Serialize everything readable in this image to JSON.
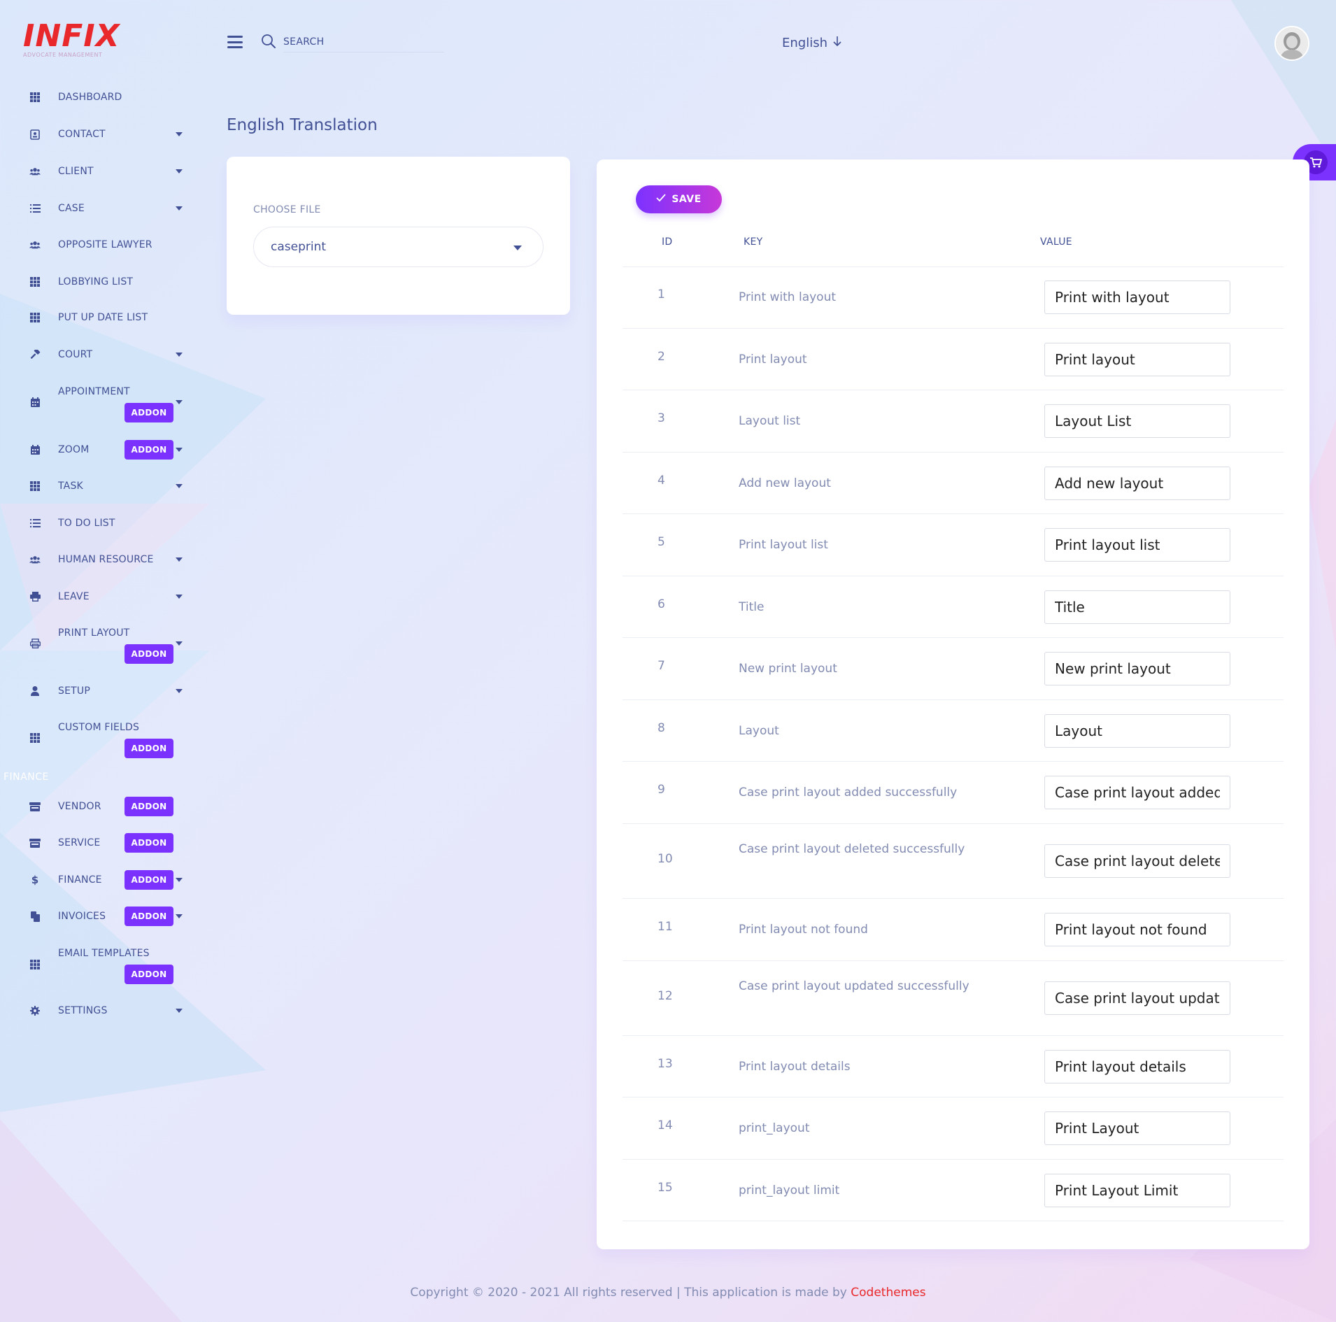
{
  "app": {
    "logo_text": "INFIX",
    "logo_subtitle": "ADVOCATE MANAGEMENT"
  },
  "header": {
    "search_placeholder": "SEARCH",
    "language": "English"
  },
  "sidebar": {
    "items": [
      {
        "label": "DASHBOARD",
        "icon": "grid-icon"
      },
      {
        "label": "CONTACT",
        "icon": "contact-icon"
      },
      {
        "label": "CLIENT",
        "icon": "users-icon"
      },
      {
        "label": "CASE",
        "icon": "list-icon"
      },
      {
        "label": "OPPOSITE LAWYER",
        "icon": "users-icon"
      },
      {
        "label": "LOBBYING LIST",
        "icon": "grid-icon"
      },
      {
        "label": "PUT UP DATE LIST",
        "icon": "grid-icon"
      },
      {
        "label": "COURT",
        "icon": "gavel-icon"
      },
      {
        "label": "APPOINTMENT",
        "icon": "calendar-icon",
        "badge": "ADDON"
      },
      {
        "label": "ZOOM",
        "icon": "calendar-icon",
        "badge": "ADDON"
      },
      {
        "label": "TASK",
        "icon": "grid-icon"
      },
      {
        "label": "TO DO LIST",
        "icon": "list-icon"
      },
      {
        "label": "HUMAN RESOURCE",
        "icon": "users-icon"
      },
      {
        "label": "LEAVE",
        "icon": "printer-icon"
      },
      {
        "label": "PRINT LAYOUT",
        "icon": "printer-icon",
        "badge": "ADDON"
      },
      {
        "label": "SETUP",
        "icon": "user-icon"
      },
      {
        "label": "CUSTOM FIELDS",
        "icon": "grid-icon",
        "badge": "ADDON"
      },
      {
        "label": "VENDOR",
        "icon": "store-icon",
        "badge": "ADDON"
      },
      {
        "label": "SERVICE",
        "icon": "store-icon",
        "badge": "ADDON"
      },
      {
        "label": "FINANCE",
        "icon": "dollar-icon",
        "badge": "ADDON"
      },
      {
        "label": "INVOICES",
        "icon": "copy-icon",
        "badge": "ADDON"
      },
      {
        "label": "EMAIL TEMPLATES",
        "icon": "grid-icon",
        "badge": "ADDON"
      },
      {
        "label": "SETTINGS",
        "icon": "gear-icon"
      }
    ],
    "finance_section": "FINANCE"
  },
  "main": {
    "title": "English Translation",
    "choose_file_label": "CHOOSE FILE",
    "selected_file": "caseprint",
    "save_label": "SAVE",
    "columns": [
      "ID",
      "KEY",
      "VALUE"
    ],
    "rows": [
      {
        "id": "1",
        "key": "Print with layout",
        "value": "Print with layout"
      },
      {
        "id": "2",
        "key": "Print layout",
        "value": "Print layout"
      },
      {
        "id": "3",
        "key": "Layout list",
        "value": "Layout List"
      },
      {
        "id": "4",
        "key": "Add new layout",
        "value": "Add new layout"
      },
      {
        "id": "5",
        "key": "Print layout list",
        "value": "Print layout list"
      },
      {
        "id": "6",
        "key": "Title",
        "value": "Title"
      },
      {
        "id": "7",
        "key": "New print layout",
        "value": "New print layout"
      },
      {
        "id": "8",
        "key": "Layout",
        "value": "Layout"
      },
      {
        "id": "9",
        "key": "Case print layout added successfully",
        "value": "Case print layout added successfully"
      },
      {
        "id": "10",
        "key": "Case print layout deleted successfully",
        "value": "Case print layout deleted successfully"
      },
      {
        "id": "11",
        "key": "Print layout not found",
        "value": "Print layout not found"
      },
      {
        "id": "12",
        "key": "Case print layout updated successfully",
        "value": "Case print layout updated successfully"
      },
      {
        "id": "13",
        "key": "Print layout details",
        "value": "Print layout details"
      },
      {
        "id": "14",
        "key": "print_layout",
        "value": "Print Layout"
      },
      {
        "id": "15",
        "key": "print_layout limit",
        "value": "Print Layout Limit"
      }
    ]
  },
  "footer": {
    "text": "Copyright © 2020 - 2021 All rights reserved | This application is made by ",
    "brand": "Codethemes"
  },
  "colors": {
    "accent": "#7c32ff",
    "brand_red": "#e8282b",
    "text": "#415094",
    "muted": "#828bb2"
  }
}
